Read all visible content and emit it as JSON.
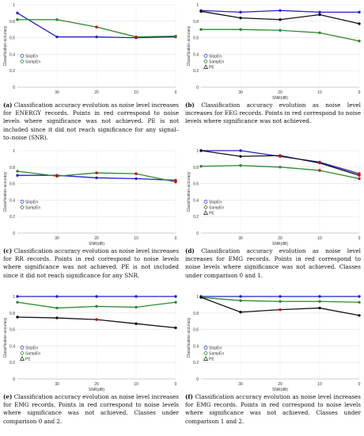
{
  "panels": [
    {
      "tag": "(a)",
      "caption": "Classification accuracy evolution as noise level increases for ENERGY records. Points in red correspond to noise levels where significance was not achieved. PE is not included since it did not reach significance for any signal–to–noise (SNR).",
      "chart_data": {
        "type": "line",
        "ylabel": "Classification accuracy",
        "xlabel": "",
        "xcategories": [
          "",
          "30",
          "20",
          "10",
          "0"
        ],
        "yticks": [
          "0",
          "0.2",
          "0.4",
          "0.6",
          "0.8",
          "1"
        ],
        "ylim": [
          0,
          1
        ],
        "legend": [
          "SlopEn",
          "SampEn"
        ],
        "series": [
          {
            "name": "SlopEn",
            "color": "#2222cc",
            "values": [
              0.9,
              0.61,
              0.61,
              0.6,
              0.61
            ],
            "red": [
              false,
              false,
              false,
              false,
              true
            ]
          },
          {
            "name": "SampEn",
            "color": "#2a8a2a",
            "values": [
              0.82,
              0.82,
              0.73,
              0.61,
              0.62
            ],
            "red": [
              false,
              false,
              true,
              true,
              false
            ]
          }
        ]
      }
    },
    {
      "tag": "(b)",
      "caption": "Classification accuracy evolution as noise level increases for EEG records. Points in red correspond to noise levels where significance was not achieved.",
      "chart_data": {
        "type": "line",
        "ylabel": "Classification accuracy",
        "xlabel": "SNR(dB)",
        "xcategories": [
          "",
          "30",
          "20",
          "10",
          "0"
        ],
        "yticks": [
          "0",
          "0.2",
          "0.4",
          "0.6",
          "0.8",
          "1"
        ],
        "ylim": [
          0,
          1
        ],
        "legend": [
          "SlopEn",
          "SampEn",
          "PE"
        ],
        "series": [
          {
            "name": "SlopEn",
            "color": "#2222cc",
            "values": [
              0.93,
              0.91,
              0.93,
              0.91,
              0.91
            ],
            "red": [
              false,
              false,
              false,
              false,
              false
            ]
          },
          {
            "name": "SampEn",
            "color": "#2a8a2a",
            "values": [
              0.7,
              0.7,
              0.69,
              0.66,
              0.56
            ],
            "red": [
              false,
              false,
              false,
              false,
              false
            ]
          },
          {
            "name": "PE",
            "color": "#111111",
            "values": [
              0.92,
              0.84,
              0.82,
              0.88,
              0.77
            ],
            "red": [
              false,
              false,
              false,
              false,
              false
            ]
          }
        ]
      }
    },
    {
      "tag": "(c)",
      "caption": "Classification accuracy evolution as noise level increases for RR records. Points in red correspond to noise levels where significance was not achieved. PE is not included since it did not reach significance for any SNR.",
      "chart_data": {
        "type": "line",
        "ylabel": "Classification accuracy",
        "xlabel": "SNR(dB)",
        "xcategories": [
          "",
          "30",
          "20",
          "10",
          "0"
        ],
        "yticks": [
          "0",
          "0.2",
          "0.4",
          "0.6",
          "0.8",
          "1"
        ],
        "ylim": [
          0,
          1
        ],
        "legend": [
          "SlopEn",
          "SampEn"
        ],
        "series": [
          {
            "name": "SlopEn",
            "color": "#2222cc",
            "values": [
              0.7,
              0.7,
              0.67,
              0.66,
              0.64
            ],
            "red": [
              false,
              true,
              false,
              false,
              true
            ]
          },
          {
            "name": "SampEn",
            "color": "#2a8a2a",
            "values": [
              0.75,
              0.69,
              0.73,
              0.72,
              0.62
            ],
            "red": [
              false,
              true,
              true,
              true,
              true
            ]
          }
        ]
      }
    },
    {
      "tag": "(d)",
      "caption": "Classification accuracy evolution as noise level increases for EMG records. Points in red correspond to noise levels where significance was not achieved. Classes under comparison 0 and 1.",
      "chart_data": {
        "type": "line",
        "ylabel": "Classification accuracy",
        "xlabel": "SNR(dB)",
        "xcategories": [
          "",
          "30",
          "20",
          "10",
          "0"
        ],
        "yticks": [
          "0",
          "0.2",
          "0.4",
          "0.6",
          "0.8",
          "1"
        ],
        "ylim": [
          0,
          1
        ],
        "legend": [
          "SlopEn",
          "SampEn",
          "PE"
        ],
        "series": [
          {
            "name": "SlopEn",
            "color": "#2222cc",
            "values": [
              1.0,
              1.0,
              0.93,
              0.86,
              0.72
            ],
            "red": [
              false,
              false,
              true,
              true,
              true
            ]
          },
          {
            "name": "SampEn",
            "color": "#2a8a2a",
            "values": [
              0.81,
              0.82,
              0.8,
              0.76,
              0.66
            ],
            "red": [
              false,
              false,
              false,
              true,
              true
            ]
          },
          {
            "name": "PE",
            "color": "#111111",
            "values": [
              1.0,
              0.93,
              0.94,
              0.85,
              0.7
            ],
            "red": [
              false,
              false,
              true,
              true,
              true
            ]
          }
        ]
      }
    },
    {
      "tag": "(e)",
      "caption": "Classification accuracy evolution as noise level increases for EMG records. Points in red correspond to noise levels where significance was not achieved. Classes under comparison 0 and 2.",
      "chart_data": {
        "type": "line",
        "ylabel": "Classification accuracy",
        "xlabel": "SNR(dB)",
        "xcategories": [
          "",
          "30",
          "20",
          "10",
          "0"
        ],
        "yticks": [
          "0",
          "0.2",
          "0.4",
          "0.6",
          "0.8",
          "1"
        ],
        "ylim": [
          0,
          1
        ],
        "legend": [
          "SlopEn",
          "SampEn",
          "PE"
        ],
        "series": [
          {
            "name": "SlopEn",
            "color": "#2222cc",
            "values": [
              1.0,
              1.0,
              1.0,
              1.0,
              1.0
            ],
            "red": [
              false,
              false,
              false,
              false,
              false
            ]
          },
          {
            "name": "SampEn",
            "color": "#2a8a2a",
            "values": [
              0.93,
              0.86,
              0.88,
              0.87,
              0.93
            ],
            "red": [
              false,
              false,
              false,
              false,
              false
            ]
          },
          {
            "name": "PE",
            "color": "#111111",
            "values": [
              0.75,
              0.74,
              0.72,
              0.67,
              0.62
            ],
            "red": [
              false,
              false,
              true,
              false,
              false
            ]
          }
        ]
      }
    },
    {
      "tag": "(f)",
      "caption": "Classification accuracy evolution as noise level increases for EMG records. Points in red correspond to noise levels where significance was not achieved. Classes under comparison 1 and 2.",
      "chart_data": {
        "type": "line",
        "ylabel": "Classification accuracy",
        "xlabel": "SNR(dB)",
        "xcategories": [
          "",
          "30",
          "20",
          "10",
          "0"
        ],
        "yticks": [
          "0",
          "0.2",
          "0.4",
          "0.6",
          "0.8",
          "1"
        ],
        "ylim": [
          0,
          1
        ],
        "legend": [
          "SlopEn",
          "SampEn",
          "PE"
        ],
        "series": [
          {
            "name": "SlopEn",
            "color": "#2222cc",
            "values": [
              1.0,
              1.0,
              1.0,
              1.0,
              1.0
            ],
            "red": [
              false,
              false,
              false,
              false,
              false
            ]
          },
          {
            "name": "SampEn",
            "color": "#2a8a2a",
            "values": [
              0.99,
              0.95,
              0.94,
              0.94,
              0.93
            ],
            "red": [
              false,
              false,
              false,
              false,
              false
            ]
          },
          {
            "name": "PE",
            "color": "#111111",
            "values": [
              0.99,
              0.81,
              0.84,
              0.86,
              0.77
            ],
            "red": [
              false,
              false,
              true,
              false,
              false
            ]
          }
        ]
      }
    }
  ]
}
